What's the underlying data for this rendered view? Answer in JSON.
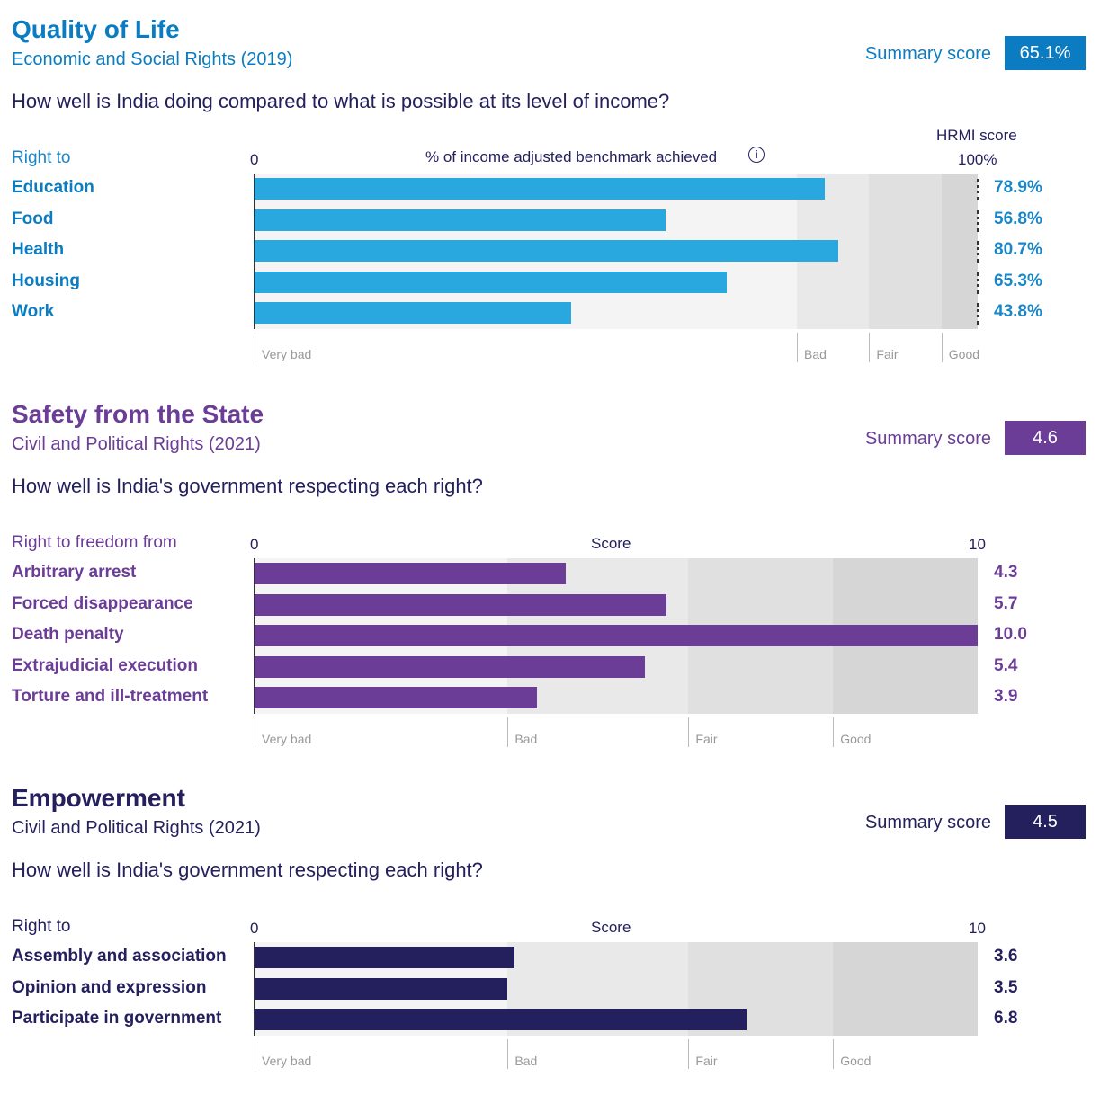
{
  "chart_data": [
    {
      "type": "bar",
      "orientation": "horizontal",
      "title": "Quality of Life",
      "subtitle": "Economic and Social Rights (2019)",
      "question": "How well is India doing compared to what is possible at its level of income?",
      "summary_label": "Summary score",
      "summary_value": "65.1%",
      "row_header": "Right to",
      "axis_min_label": "0",
      "axis_label": "% of income adjusted benchmark achieved",
      "axis_max_label": "100%",
      "right_header": "HRMI score",
      "xlim": [
        0,
        100
      ],
      "info_icon": "info-circle-icon",
      "categories": [
        "Education",
        "Food",
        "Health",
        "Housing",
        "Work"
      ],
      "values": [
        78.9,
        56.8,
        80.7,
        65.3,
        43.8
      ],
      "value_labels": [
        "78.9%",
        "56.8%",
        "80.7%",
        "65.3%",
        "43.8%"
      ],
      "bands": [
        {
          "label": "Very bad",
          "from": 0,
          "to": 75
        },
        {
          "label": "Bad",
          "from": 75,
          "to": 85
        },
        {
          "label": "Fair",
          "from": 85,
          "to": 95
        },
        {
          "label": "Good",
          "from": 95,
          "to": 100
        }
      ],
      "colors": {
        "title": "#0b7cc1",
        "bar": "#29a8e0",
        "value": "#1a86c8",
        "header": "#1a86c8"
      }
    },
    {
      "type": "bar",
      "orientation": "horizontal",
      "title": "Safety from the State",
      "subtitle": "Civil and Political Rights (2021)",
      "question": "How well is India's government respecting each right?",
      "summary_label": "Summary score",
      "summary_value": "4.6",
      "row_header": "Right to freedom from",
      "axis_min_label": "0",
      "axis_label": "Score",
      "axis_max_label": "10",
      "xlim": [
        0,
        10
      ],
      "categories": [
        "Arbitrary arrest",
        "Forced disappearance",
        "Death penalty",
        "Extrajudicial execution",
        "Torture and ill-treatment"
      ],
      "values": [
        4.3,
        5.7,
        10.0,
        5.4,
        3.9
      ],
      "value_labels": [
        "4.3",
        "5.7",
        "10.0",
        "5.4",
        "3.9"
      ],
      "bands": [
        {
          "label": "Very bad",
          "from": 0,
          "to": 3.5
        },
        {
          "label": "Bad",
          "from": 3.5,
          "to": 6
        },
        {
          "label": "Fair",
          "from": 6,
          "to": 8
        },
        {
          "label": "Good",
          "from": 8,
          "to": 10
        }
      ],
      "colors": {
        "title": "#6b3d96",
        "bar": "#6b3d96",
        "value": "#6b3d96",
        "header": "#6b3d96"
      }
    },
    {
      "type": "bar",
      "orientation": "horizontal",
      "title": "Empowerment",
      "subtitle": "Civil and Political Rights (2021)",
      "question": "How well is India's government respecting each right?",
      "summary_label": "Summary score",
      "summary_value": "4.5",
      "row_header": "Right to",
      "axis_min_label": "0",
      "axis_label": "Score",
      "axis_max_label": "10",
      "xlim": [
        0,
        10
      ],
      "categories": [
        "Assembly and association",
        "Opinion and expression",
        "Participate in government"
      ],
      "values": [
        3.6,
        3.5,
        6.8
      ],
      "value_labels": [
        "3.6",
        "3.5",
        "6.8"
      ],
      "bands": [
        {
          "label": "Very bad",
          "from": 0,
          "to": 3.5
        },
        {
          "label": "Bad",
          "from": 3.5,
          "to": 6
        },
        {
          "label": "Fair",
          "from": 6,
          "to": 8
        },
        {
          "label": "Good",
          "from": 8,
          "to": 10
        }
      ],
      "colors": {
        "title": "#24205e",
        "bar": "#24205e",
        "value": "#24205e",
        "header": "#24205e"
      }
    }
  ]
}
